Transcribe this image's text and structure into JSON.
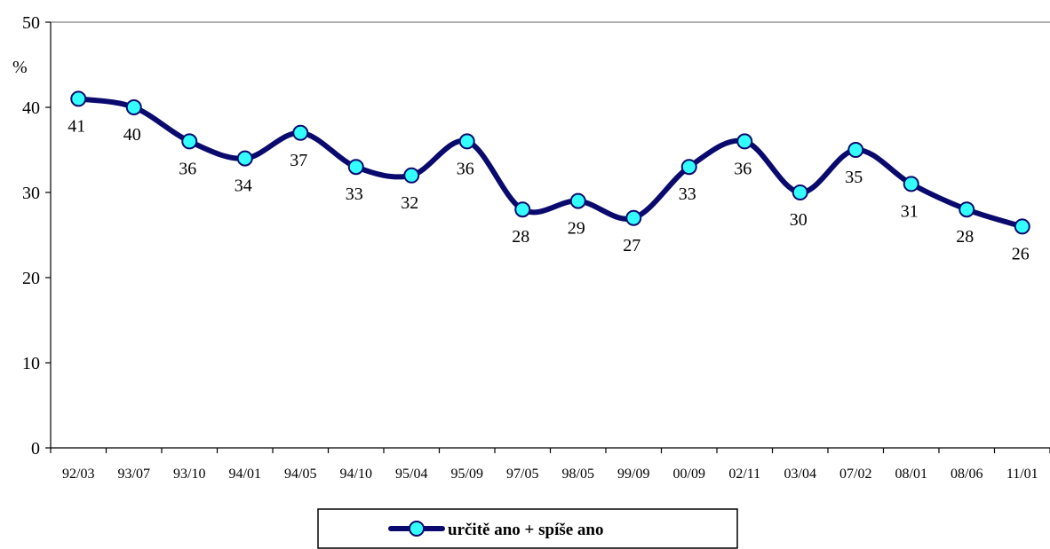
{
  "chart_data": {
    "type": "line",
    "categories": [
      "92/03",
      "93/07",
      "93/10",
      "94/01",
      "94/05",
      "94/10",
      "95/04",
      "95/09",
      "97/05",
      "98/05",
      "99/09",
      "00/09",
      "02/11",
      "03/04",
      "07/02",
      "08/01",
      "08/06",
      "11/01"
    ],
    "series": [
      {
        "name": "určitě ano + spíše ano",
        "values": [
          41,
          40,
          36,
          34,
          37,
          33,
          32,
          36,
          28,
          29,
          27,
          33,
          36,
          30,
          35,
          31,
          28,
          26
        ]
      }
    ],
    "ylabel": "%",
    "xlabel": "",
    "title": "",
    "ylim": [
      0,
      50
    ],
    "yticks": [
      0,
      10,
      20,
      30,
      40,
      50
    ],
    "grid": "top line only",
    "legend_position": "bottom-center",
    "colors": {
      "line": "#0a0a6e",
      "marker_fill": "#33ffff",
      "marker_stroke": "#0a0a6e",
      "axis": "#000000"
    }
  }
}
